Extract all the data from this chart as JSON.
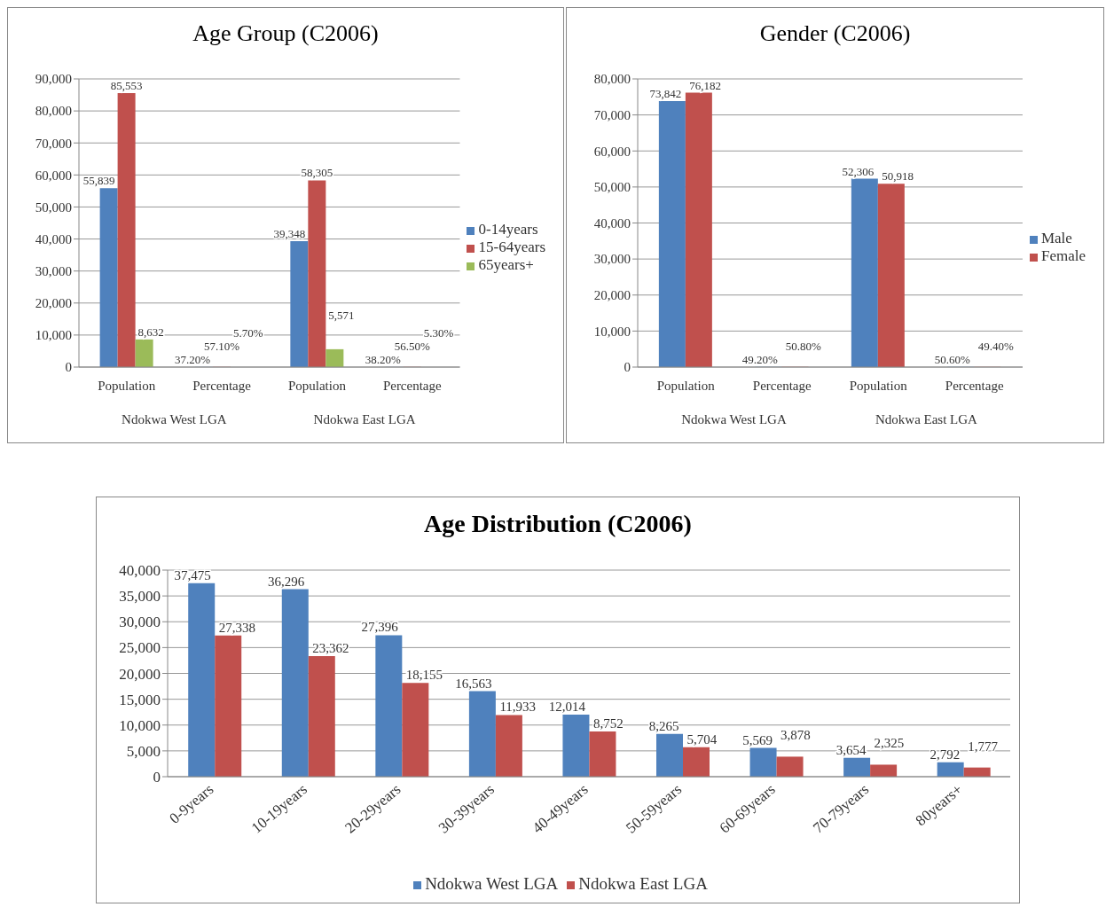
{
  "chart_data": [
    {
      "type": "bar",
      "title": "Age Group (C2006)",
      "categories": [
        "Population",
        "Percentage",
        "Population",
        "Percentage"
      ],
      "annotations": [
        "Ndokwa West LGA",
        "Ndokwa East LGA"
      ],
      "series": [
        {
          "name": "0-14years",
          "color": "#4f81bd",
          "values": [
            55839,
            37.2,
            39348,
            38.2
          ],
          "value_labels": [
            "55,839",
            "37.20%",
            "39,348",
            "38.20%"
          ]
        },
        {
          "name": "15-64years",
          "color": "#c0504d",
          "values": [
            85553,
            57.1,
            58305,
            56.5
          ],
          "value_labels": [
            "85,553",
            "57.10%",
            "58,305",
            "56.50%"
          ]
        },
        {
          "name": "65years+",
          "color": "#9bbb59",
          "values": [
            8632,
            5.7,
            5571,
            5.3
          ],
          "value_labels": [
            "8,632",
            "5.70%",
            "5,571",
            "5.30%"
          ]
        }
      ],
      "ylim": [
        0,
        90000
      ],
      "yticks": [
        {
          "value": 0,
          "label": "0"
        },
        {
          "value": 10000,
          "label": "10,000"
        },
        {
          "value": 20000,
          "label": "20,000"
        },
        {
          "value": 30000,
          "label": "30,000"
        },
        {
          "value": 40000,
          "label": "40,000"
        },
        {
          "value": 50000,
          "label": "50,000"
        },
        {
          "value": 60000,
          "label": "60,000"
        },
        {
          "value": 70000,
          "label": "70,000"
        },
        {
          "value": 80000,
          "label": "80,000"
        },
        {
          "value": 90000,
          "label": "90,000"
        }
      ],
      "grid": "y",
      "legend": "right"
    },
    {
      "type": "bar",
      "title": "Gender (C2006)",
      "categories": [
        "Population",
        "Percentage",
        "Population",
        "Percentage"
      ],
      "annotations": [
        "Ndokwa West LGA",
        "Ndokwa East LGA"
      ],
      "series": [
        {
          "name": "Male",
          "color": "#4f81bd",
          "values": [
            73842,
            49.2,
            52306,
            50.6
          ],
          "value_labels": [
            "73,842",
            "49.20%",
            "52,306",
            "50.60%"
          ]
        },
        {
          "name": "Female",
          "color": "#c0504d",
          "values": [
            76182,
            50.8,
            50918,
            49.4
          ],
          "value_labels": [
            "76,182",
            "50.80%",
            "50,918",
            "49.40%"
          ]
        }
      ],
      "ylim": [
        0,
        80000
      ],
      "yticks": [
        {
          "value": 0,
          "label": "0"
        },
        {
          "value": 10000,
          "label": "10,000"
        },
        {
          "value": 20000,
          "label": "20,000"
        },
        {
          "value": 30000,
          "label": "30,000"
        },
        {
          "value": 40000,
          "label": "40,000"
        },
        {
          "value": 50000,
          "label": "50,000"
        },
        {
          "value": 60000,
          "label": "60,000"
        },
        {
          "value": 70000,
          "label": "70,000"
        },
        {
          "value": 80000,
          "label": "80,000"
        }
      ],
      "grid": "y",
      "legend": "right"
    },
    {
      "type": "bar",
      "title": "Age Distribution (C2006)",
      "categories": [
        "0-9years",
        "10-19years",
        "20-29years",
        "30-39years",
        "40-49years",
        "50-59years",
        "60-69years",
        "70-79years",
        "80years+"
      ],
      "series": [
        {
          "name": "Ndokwa West LGA",
          "color": "#4f81bd",
          "values": [
            37475,
            36296,
            27396,
            16563,
            12014,
            8265,
            5569,
            3654,
            2792
          ],
          "value_labels": [
            "37,475",
            "36,296",
            "27,396",
            "16,563",
            "12,014",
            "8,265",
            "5,569",
            "3,654",
            "2,792"
          ]
        },
        {
          "name": "Ndokwa East LGA",
          "color": "#c0504d",
          "values": [
            27338,
            23362,
            18155,
            11933,
            8752,
            5704,
            3878,
            2325,
            1777
          ],
          "value_labels": [
            "27,338",
            "23,362",
            "18,155",
            "11,933",
            "8,752",
            "5,704",
            "3,878",
            "2,325",
            "1,777"
          ]
        }
      ],
      "ylim": [
        0,
        40000
      ],
      "yticks": [
        {
          "value": 0,
          "label": "0"
        },
        {
          "value": 5000,
          "label": "5,000"
        },
        {
          "value": 10000,
          "label": "10,000"
        },
        {
          "value": 15000,
          "label": "15,000"
        },
        {
          "value": 20000,
          "label": "20,000"
        },
        {
          "value": 25000,
          "label": "25,000"
        },
        {
          "value": 30000,
          "label": "30,000"
        },
        {
          "value": 35000,
          "label": "35,000"
        },
        {
          "value": 40000,
          "label": "40,000"
        }
      ],
      "grid": "y",
      "legend": "bottom"
    }
  ]
}
